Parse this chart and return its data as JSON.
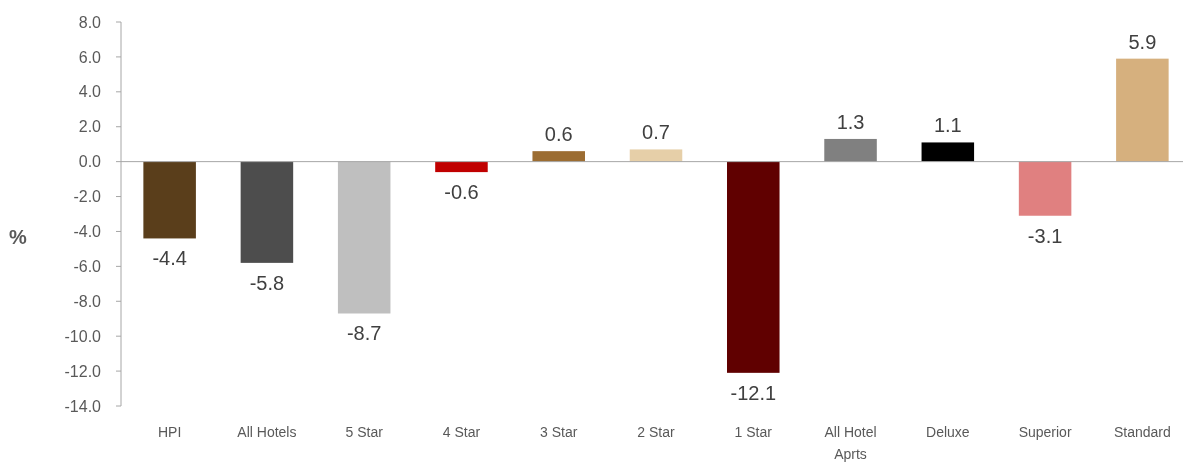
{
  "chart_data": {
    "type": "bar",
    "ylabel": "%",
    "categories": [
      "HPI",
      "All Hotels",
      "5 Star",
      "4 Star",
      "3 Star",
      "2 Star",
      "1 Star",
      "All Hotel Aprts",
      "Deluxe",
      "Superior",
      "Standard"
    ],
    "values": [
      -4.4,
      -5.8,
      -8.7,
      -0.6,
      0.6,
      0.7,
      -12.1,
      1.3,
      1.1,
      -3.1,
      5.9
    ],
    "colors": [
      "#5a3e1b",
      "#4d4d4d",
      "#bfbfbf",
      "#c00000",
      "#9c6d32",
      "#e6cfa8",
      "#600000",
      "#808080",
      "#000000",
      "#e08080",
      "#d6b07e"
    ],
    "ylim": [
      -14,
      8
    ],
    "yticks": [
      {
        "value": -14,
        "label": "-14.0"
      },
      {
        "value": -12,
        "label": "-12.0"
      },
      {
        "value": -10,
        "label": "-10.0"
      },
      {
        "value": -8,
        "label": "-8.0"
      },
      {
        "value": -6,
        "label": "-6.0"
      },
      {
        "value": -4,
        "label": "-4.0"
      },
      {
        "value": -2,
        "label": "-2.0"
      },
      {
        "value": 0,
        "label": "0.0"
      },
      {
        "value": 2,
        "label": "2.0"
      },
      {
        "value": 4,
        "label": "4.0"
      },
      {
        "value": 6,
        "label": "6.0"
      },
      {
        "value": 8,
        "label": "8.0"
      }
    ],
    "data_labels": true
  }
}
